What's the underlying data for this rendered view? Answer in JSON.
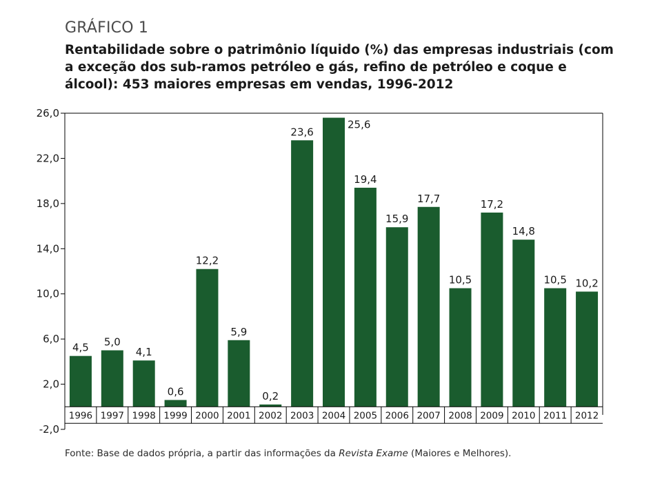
{
  "figure": {
    "label": "GRÁFICO 1",
    "title": "Rentabilidade sobre o patrimônio líquido (%) das empresas industriais (com a exceção dos sub-ramos petróleo e gás, refino de petróleo e coque e álcool): 453 maiores empresas em vendas, 1996-2012",
    "source_prefix": "Fonte: Base de dados própria, a partir das informações da ",
    "source_italic": "Revista Exame",
    "source_suffix": " (Maiores e Melhores)."
  },
  "colors": {
    "bar": "#1a5c2e",
    "axis": "#000000",
    "text": "#1a1a1a"
  },
  "chart_data": {
    "type": "bar",
    "categories": [
      "1996",
      "1997",
      "1998",
      "1999",
      "2000",
      "2001",
      "2002",
      "2003",
      "2004",
      "2005",
      "2006",
      "2007",
      "2008",
      "2009",
      "2010",
      "2011",
      "2012"
    ],
    "values": [
      4.5,
      5.0,
      4.1,
      0.6,
      12.2,
      5.9,
      0.2,
      23.6,
      25.6,
      19.4,
      15.9,
      17.7,
      10.5,
      17.2,
      14.8,
      10.5,
      10.2
    ],
    "data_labels": [
      "4,5",
      "5,0",
      "4,1",
      "0,6",
      "12,2",
      "5,9",
      "0,2",
      "23,6",
      "25,6",
      "19,4",
      "15,9",
      "17,7",
      "10,5",
      "17,2",
      "14,8",
      "10,5",
      "10,2"
    ],
    "y_ticks": [
      -2.0,
      2.0,
      6.0,
      10.0,
      14.0,
      18.0,
      22.0,
      26.0
    ],
    "y_tick_labels": [
      "-2,0",
      "2,0",
      "6,0",
      "10,0",
      "14,0",
      "18,0",
      "22,0",
      "26,0"
    ],
    "ylim": [
      -2.0,
      26.0
    ],
    "grid": false,
    "xlabel": "",
    "ylabel": ""
  }
}
